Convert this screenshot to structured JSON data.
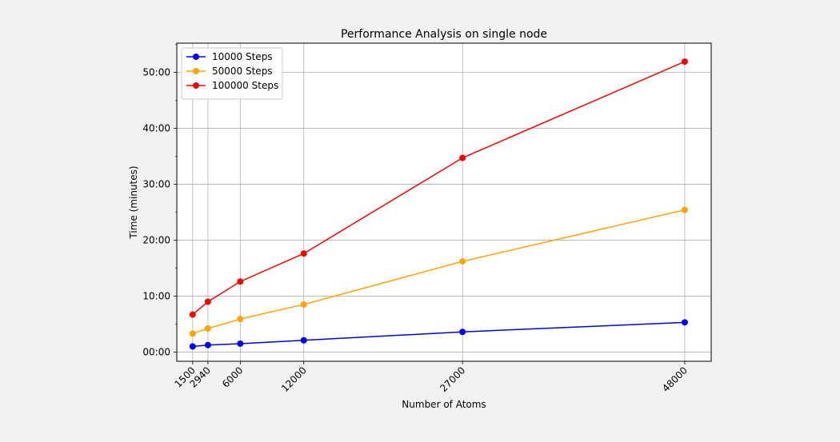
{
  "chart_data": {
    "type": "line",
    "title": "Performance Analysis on single node",
    "xlabel": "Number of Atoms",
    "ylabel": "Time (minutes)",
    "x": [
      1500,
      2940,
      6000,
      12000,
      27000,
      48000
    ],
    "x_tick_labels": [
      "1500",
      "2940",
      "6000",
      "12000",
      "27000",
      "48000"
    ],
    "y_ticks": [
      0,
      10,
      20,
      30,
      40,
      50
    ],
    "y_tick_labels": [
      "00:00",
      "10:00",
      "20:00",
      "30:00",
      "40:00",
      "50:00"
    ],
    "xlim": [
      0,
      50500
    ],
    "ylim": [
      -1.65,
      55.2
    ],
    "grid": true,
    "legend_position": "upper-left",
    "series": [
      {
        "name": "10000 Steps",
        "color": "#0000ff",
        "values": [
          1.0,
          1.25,
          1.5,
          2.1,
          3.6,
          5.3
        ]
      },
      {
        "name": "50000 Steps",
        "color": "#ffa500",
        "values": [
          3.3,
          4.2,
          5.9,
          8.5,
          16.2,
          25.4
        ]
      },
      {
        "name": "100000 Steps",
        "color": "#ff0000",
        "values": [
          6.7,
          9.0,
          12.6,
          17.6,
          34.7,
          51.9
        ]
      }
    ]
  }
}
